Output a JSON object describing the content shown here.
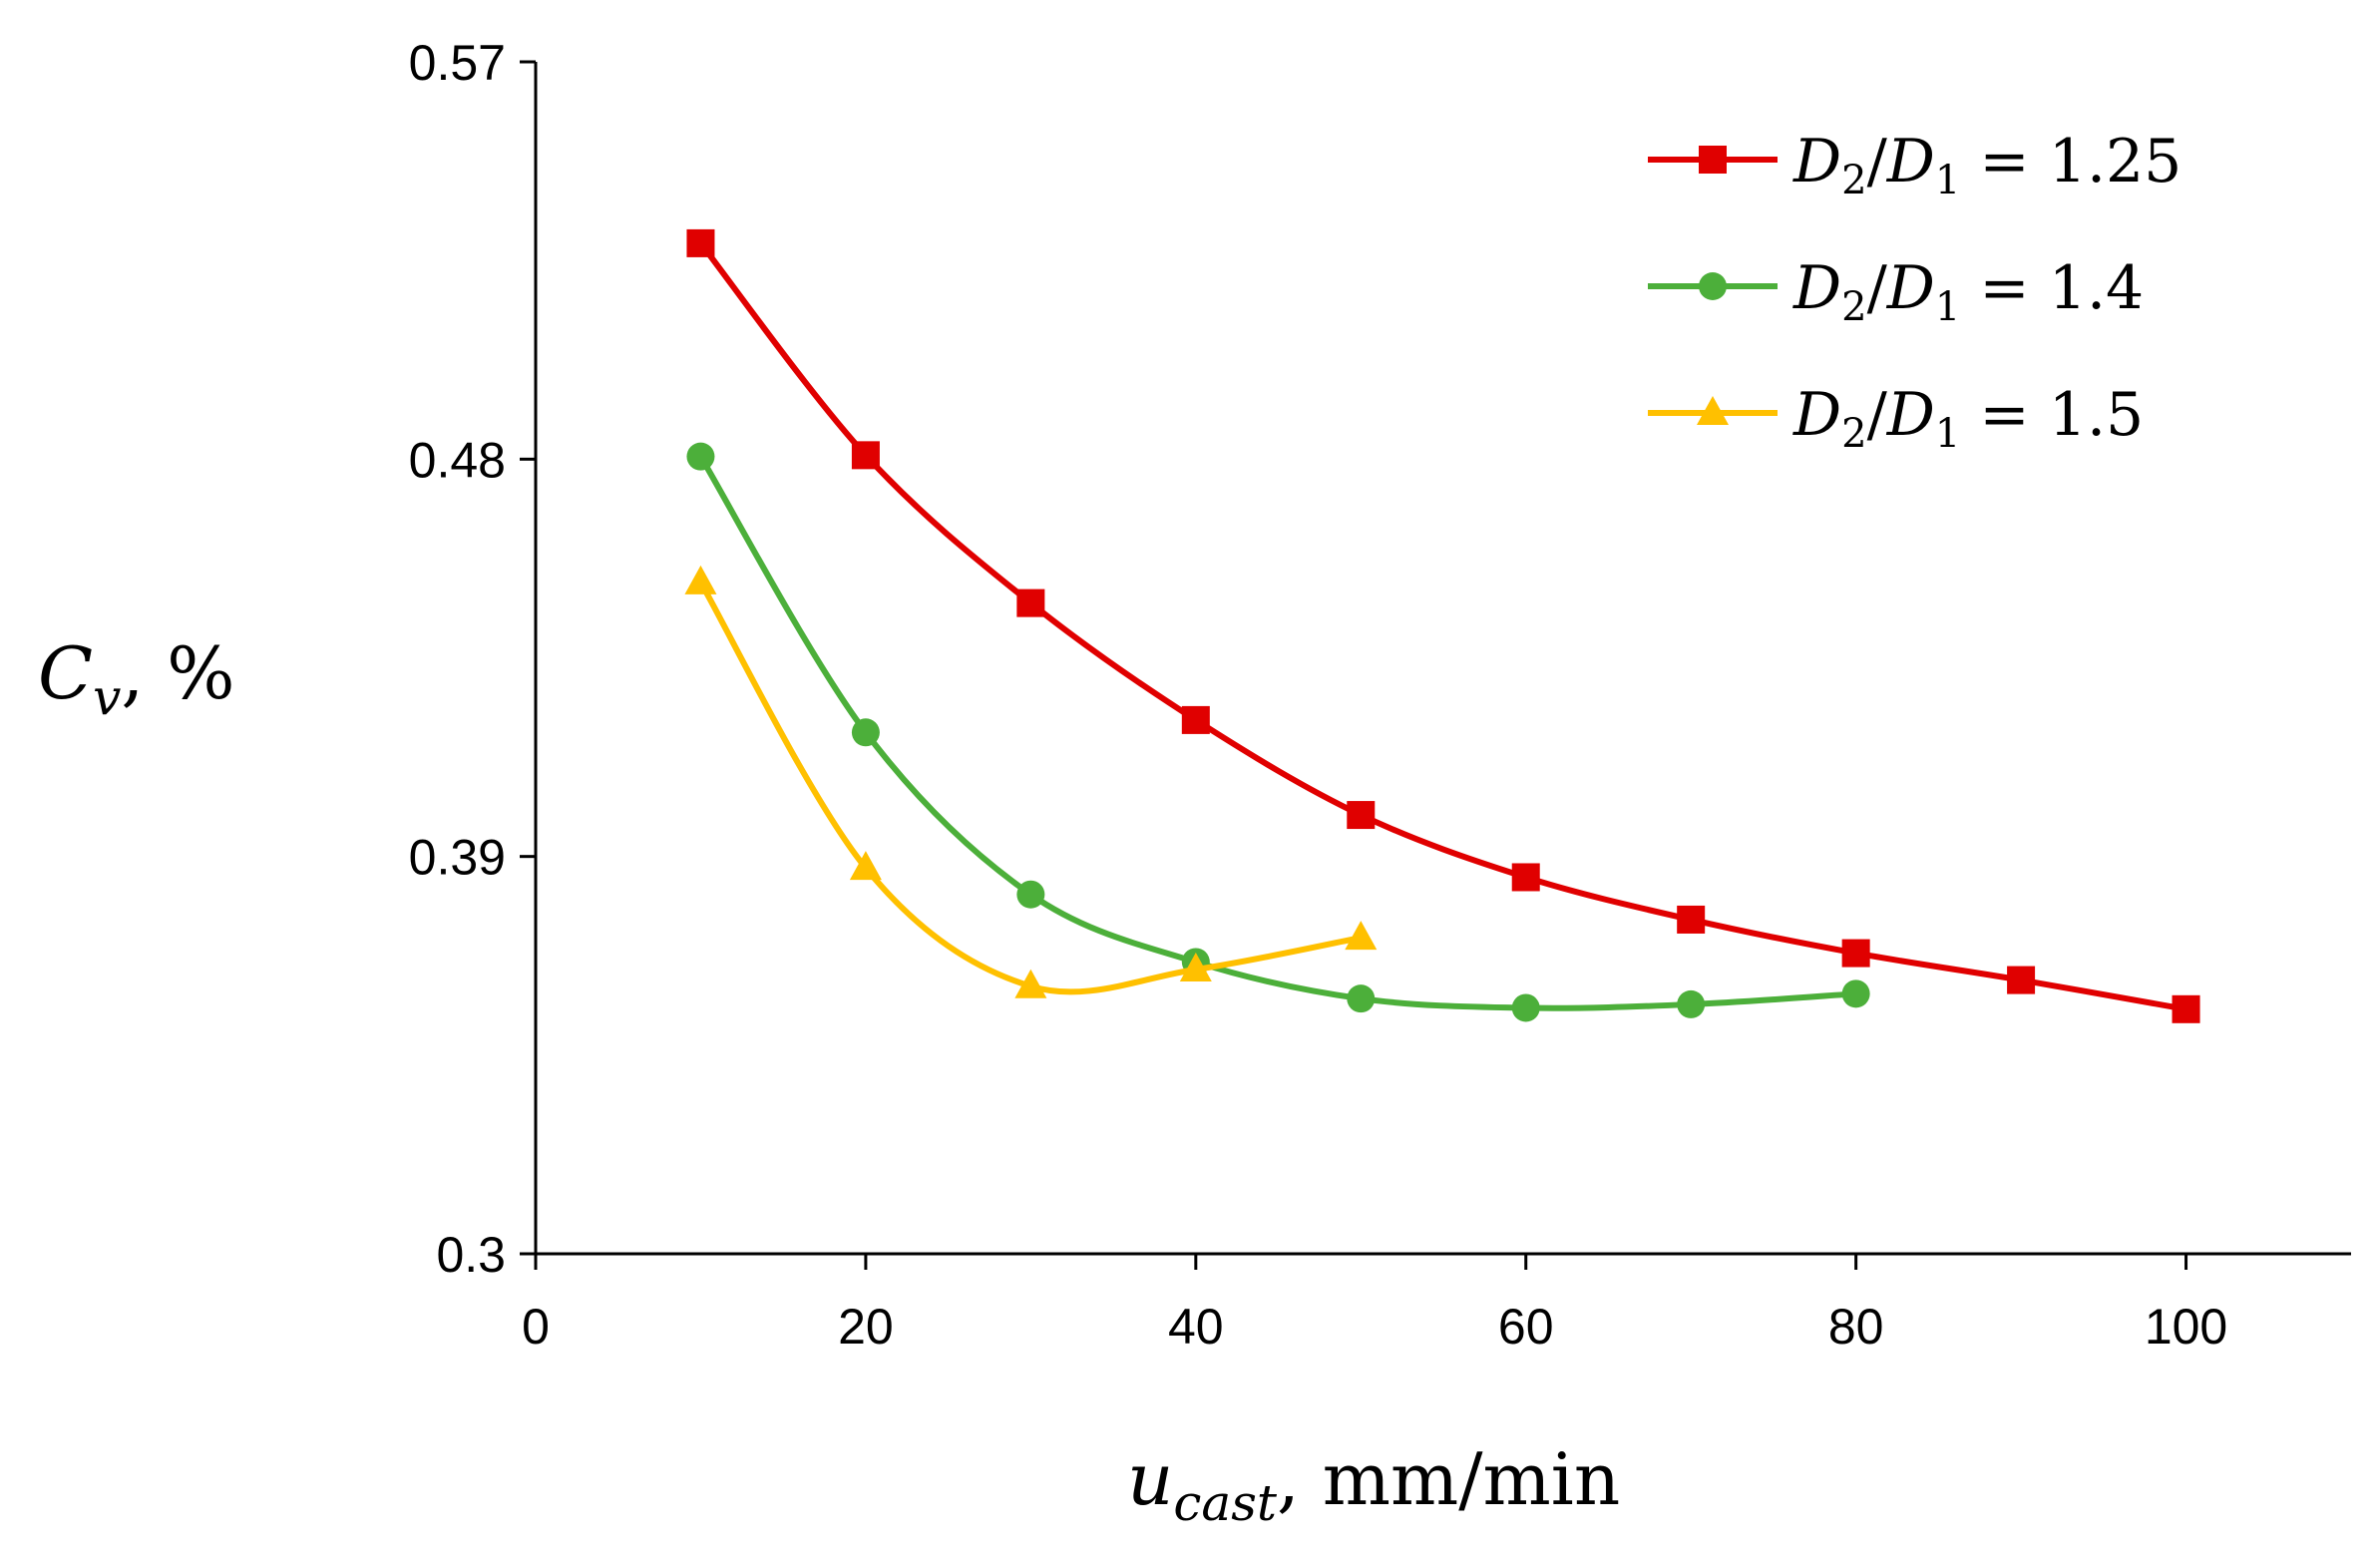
{
  "chart_data": {
    "type": "line",
    "title": "",
    "xlabel": {
      "var": "u",
      "sub": "cast",
      "units": ", mm/min"
    },
    "ylabel": {
      "var": "C",
      "sub": "v",
      "units": ", %"
    },
    "xlim": [
      0,
      110
    ],
    "ylim": [
      0.3,
      0.57
    ],
    "xticks": [
      0,
      20,
      40,
      60,
      80,
      100
    ],
    "xtick_labels": [
      "0",
      "20",
      "40",
      "60",
      "80",
      "100"
    ],
    "yticks": [
      0.3,
      0.39,
      0.48,
      0.57
    ],
    "ytick_labels": [
      "0.3",
      "0.39",
      "0.48",
      "0.57"
    ],
    "grid": false,
    "legend_position": "top-right",
    "series": [
      {
        "name": "D2/D1 = 1.25",
        "label": {
          "a": "D",
          "a_sub": "2",
          "b": "D",
          "b_sub": "1",
          "value": "1.25"
        },
        "color": "#e00000",
        "marker": "square",
        "x": [
          10,
          20,
          30,
          40,
          50,
          60,
          70,
          80,
          90,
          100
        ],
        "y": [
          0.5289,
          0.4809,
          0.4474,
          0.4209,
          0.3994,
          0.3853,
          0.3757,
          0.3681,
          0.362,
          0.3554
        ]
      },
      {
        "name": "D2/D1 = 1.4",
        "label": {
          "a": "D",
          "a_sub": "2",
          "b": "D",
          "b_sub": "1",
          "value": "1.4"
        },
        "color": "#4caf3a",
        "marker": "circle",
        "x": [
          10,
          20,
          30,
          40,
          50,
          60,
          70,
          80
        ],
        "y": [
          0.4806,
          0.4181,
          0.3814,
          0.3661,
          0.3578,
          0.3557,
          0.3565,
          0.3589
        ]
      },
      {
        "name": "D2/D1 = 1.5",
        "label": {
          "a": "D",
          "a_sub": "2",
          "b": "D",
          "b_sub": "1",
          "value": "1.5"
        },
        "color": "#ffc000",
        "marker": "triangle",
        "x": [
          10,
          20,
          30,
          40,
          50
        ],
        "y": [
          0.4521,
          0.3874,
          0.3606,
          0.3644,
          0.3716
        ]
      }
    ]
  }
}
